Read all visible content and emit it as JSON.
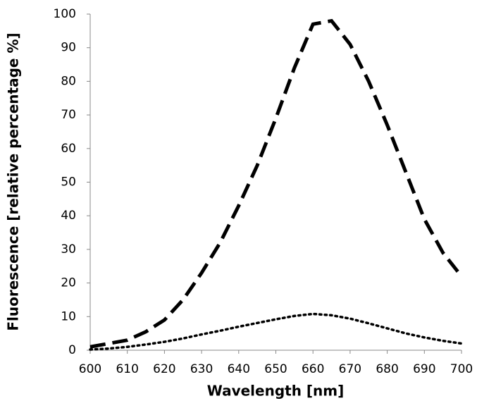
{
  "chart_data": {
    "type": "line",
    "x_label": "Wavelength [nm]",
    "y_label": "Fluorescence [relative percentage %]",
    "x": [
      600,
      605,
      610,
      615,
      620,
      625,
      630,
      635,
      640,
      645,
      650,
      655,
      660,
      665,
      670,
      675,
      680,
      685,
      690,
      695,
      700
    ],
    "series": [
      {
        "color": "#000000",
        "dash": "dashed",
        "values": [
          1,
          2,
          3,
          5.5,
          9,
          15,
          23,
          32,
          43,
          55,
          69,
          84,
          97,
          98,
          91,
          80,
          67,
          53,
          39,
          29,
          22
        ]
      },
      {
        "color": "#000000",
        "dash": "dotted",
        "values": [
          0.2,
          0.5,
          1,
          1.7,
          2.5,
          3.5,
          4.7,
          5.8,
          7,
          8.1,
          9.2,
          10.2,
          10.8,
          10.4,
          9.4,
          8,
          6.5,
          5,
          3.8,
          2.8,
          2
        ]
      }
    ],
    "xlim": [
      600,
      700
    ],
    "ylim": [
      0,
      100
    ],
    "xticks": [
      600,
      610,
      620,
      630,
      640,
      650,
      660,
      670,
      680,
      690,
      700
    ],
    "yticks": [
      0,
      10,
      20,
      30,
      40,
      50,
      60,
      70,
      80,
      90,
      100
    ],
    "grid": false
  }
}
